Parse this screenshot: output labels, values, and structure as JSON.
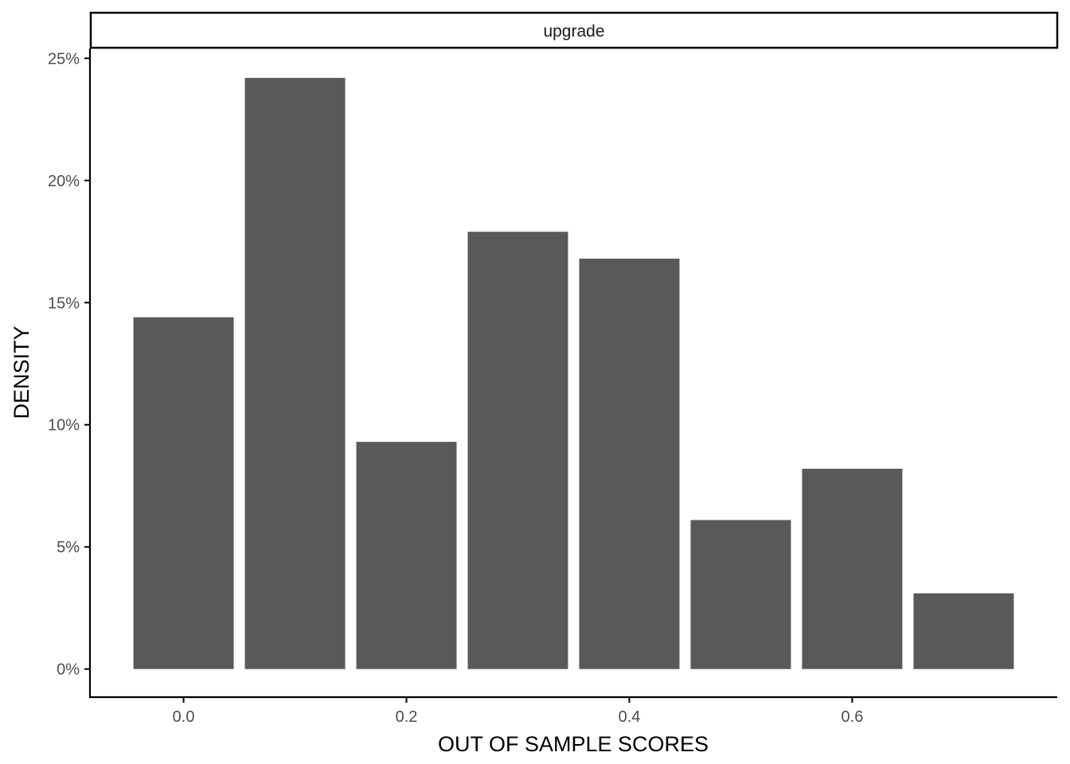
{
  "chart_data": {
    "type": "bar",
    "facet_label": "upgrade",
    "title": "",
    "xlabel": "OUT OF SAMPLE SCORES",
    "ylabel": "DENSITY",
    "x": [
      0.0,
      0.1,
      0.2,
      0.3,
      0.4,
      0.5,
      0.6,
      0.7
    ],
    "values": [
      14.4,
      24.2,
      9.3,
      17.9,
      16.8,
      6.1,
      8.2,
      3.1
    ],
    "bar_width": 0.09,
    "xlim": [
      -0.084,
      0.784
    ],
    "ylim": [
      -1.15,
      25.4
    ],
    "x_ticks": [
      0.0,
      0.2,
      0.4,
      0.6
    ],
    "x_tick_labels": [
      "0.0",
      "0.2",
      "0.4",
      "0.6"
    ],
    "y_ticks": [
      0,
      5,
      10,
      15,
      20,
      25
    ],
    "y_tick_labels": [
      "0%",
      "5%",
      "10%",
      "15%",
      "20%",
      "25%"
    ],
    "grid": false,
    "legend": "none",
    "bar_color": "#595959",
    "axis_color": "#000000"
  }
}
